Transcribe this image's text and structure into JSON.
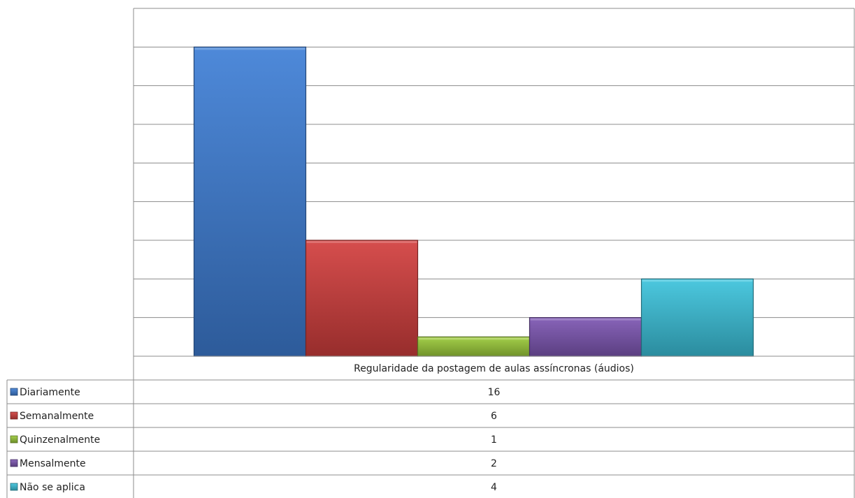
{
  "chart_data": {
    "type": "bar",
    "categories": [
      "Regularidade da postagem de aulas assíncronas (áudios)"
    ],
    "series": [
      {
        "name": "Diariamente",
        "values": [
          16
        ],
        "color": "#3F7FD6"
      },
      {
        "name": "Semanalmente",
        "values": [
          6
        ],
        "color": "#D23F3D"
      },
      {
        "name": "Quinzenalmente",
        "values": [
          1
        ],
        "color": "#9CCB3A"
      },
      {
        "name": "Mensalmente",
        "values": [
          2
        ],
        "color": "#7E57B3"
      },
      {
        "name": "Não se aplica",
        "values": [
          4
        ],
        "color": "#3CC3DC"
      }
    ],
    "title": "",
    "xlabel": "",
    "ylabel": "",
    "ylim": [
      0,
      18
    ],
    "grid": true,
    "legend": "data-table-left"
  }
}
